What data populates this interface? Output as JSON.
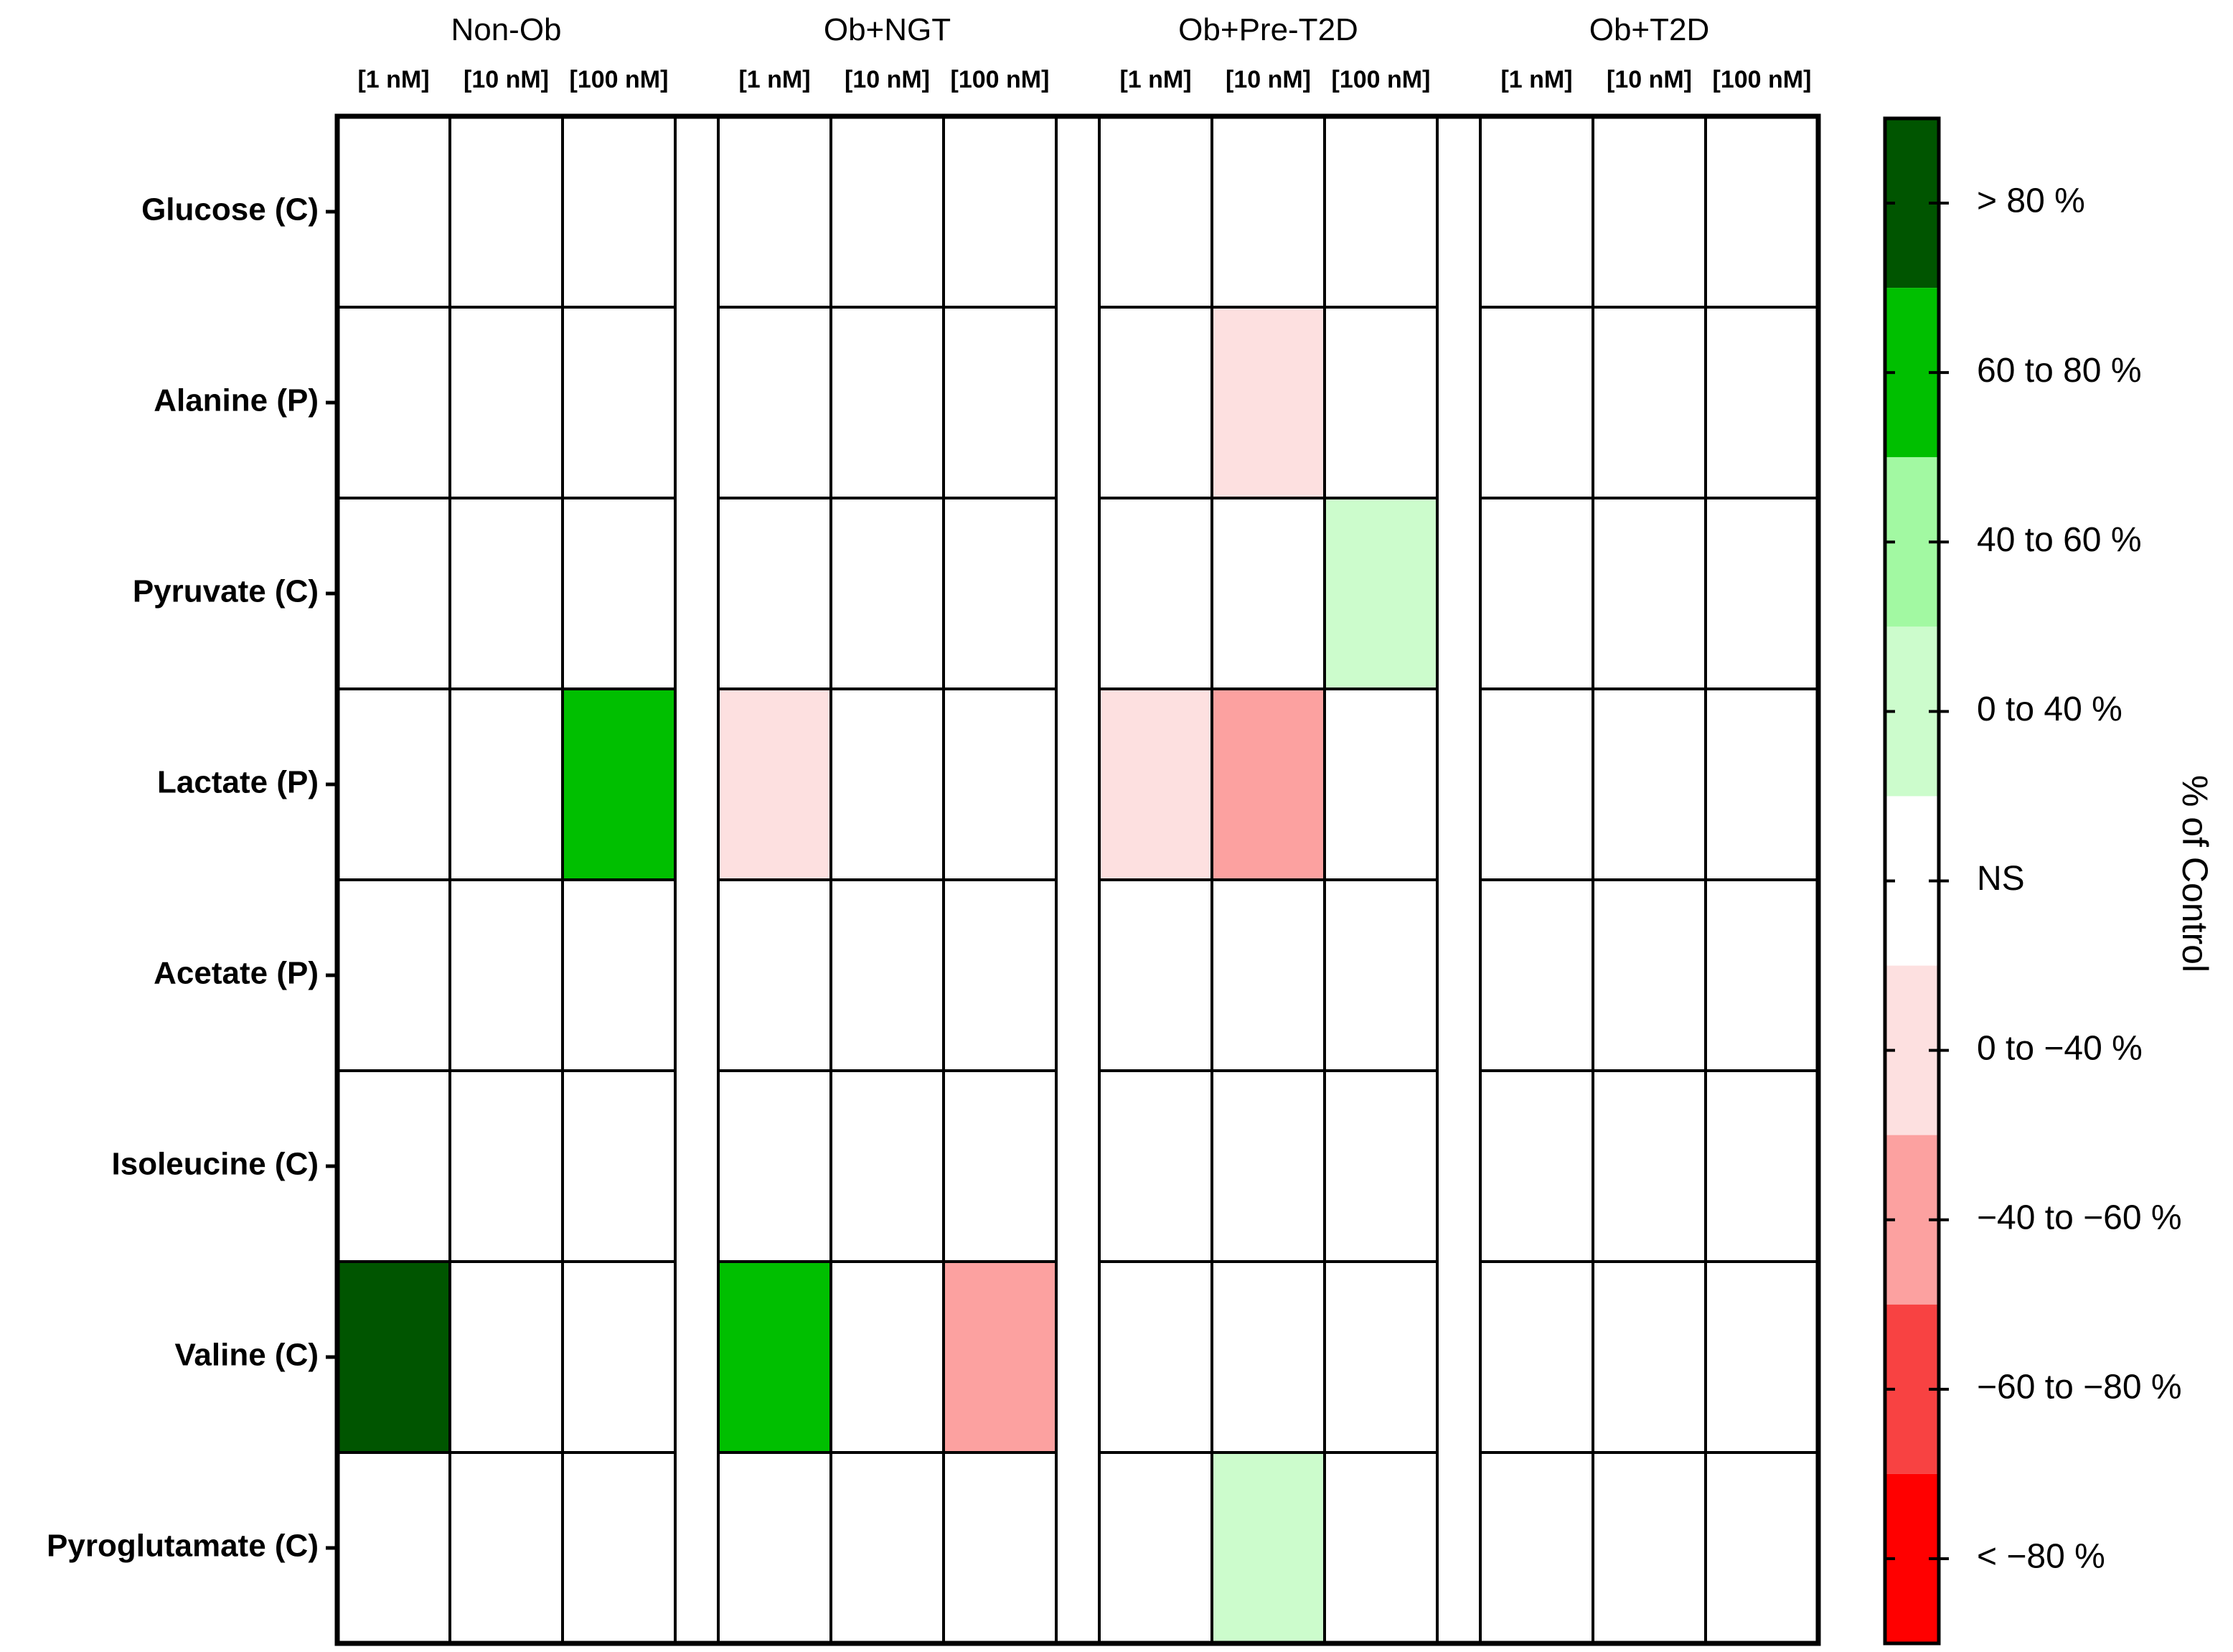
{
  "chart_data": {
    "type": "heatmap",
    "groups": [
      "Non-Ob",
      "Ob+NGT",
      "Ob+Pre-T2D",
      "Ob+T2D"
    ],
    "concentrations": [
      "[1 nM]",
      "[10 nM]",
      "[100 nM]"
    ],
    "rows": [
      "Glucose (C)",
      "Alanine (P)",
      "Pyruvate (C)",
      "Lactate (P)",
      "Acetate (P)",
      "Isoleucine (C)",
      "Valine (C)",
      "Pyroglutamate (C)"
    ],
    "values": [
      [
        "NS",
        "NS",
        "NS",
        "NS",
        "NS",
        "NS",
        "NS",
        "NS",
        "NS",
        "NS",
        "NS",
        "NS"
      ],
      [
        "NS",
        "NS",
        "NS",
        "NS",
        "NS",
        "NS",
        "NS",
        "0 to −40 %",
        "NS",
        "NS",
        "NS",
        "NS"
      ],
      [
        "NS",
        "NS",
        "NS",
        "NS",
        "NS",
        "NS",
        "NS",
        "NS",
        "0 to 40 %",
        "NS",
        "NS",
        "NS"
      ],
      [
        "NS",
        "NS",
        "60 to 80 %",
        "0 to −40 %",
        "NS",
        "NS",
        "0 to −40 %",
        "−40 to −60 %",
        "NS",
        "NS",
        "NS",
        "NS"
      ],
      [
        "NS",
        "NS",
        "NS",
        "NS",
        "NS",
        "NS",
        "NS",
        "NS",
        "NS",
        "NS",
        "NS",
        "NS"
      ],
      [
        "NS",
        "NS",
        "NS",
        "NS",
        "NS",
        "NS",
        "NS",
        "NS",
        "NS",
        "NS",
        "NS",
        "NS"
      ],
      [
        "> 80 %",
        "NS",
        "NS",
        "60 to 80 %",
        "NS",
        "−40 to −60 %",
        "NS",
        "NS",
        "NS",
        "NS",
        "NS",
        "NS"
      ],
      [
        "NS",
        "NS",
        "NS",
        "NS",
        "NS",
        "NS",
        "NS",
        "0 to 40 %",
        "NS",
        "NS",
        "NS",
        "NS"
      ]
    ],
    "legend": {
      "title": "% of Control",
      "bins": [
        {
          "label": "> 80 %",
          "color": "#005500"
        },
        {
          "label": "60 to 80 %",
          "color": "#00bf00"
        },
        {
          "label": "40 to 60 %",
          "color": "#a2f9a2"
        },
        {
          "label": "0 to 40 %",
          "color": "#ccfccc"
        },
        {
          "label": "NS",
          "color": "#ffffff"
        },
        {
          "label": "0 to −40 %",
          "color": "#fde0e0"
        },
        {
          "label": "−40 to −60 %",
          "color": "#fca1a0"
        },
        {
          "label": "−60 to −80 %",
          "color": "#f84242"
        },
        {
          "label": "< −80 %",
          "color": "#ff0000"
        }
      ]
    }
  }
}
